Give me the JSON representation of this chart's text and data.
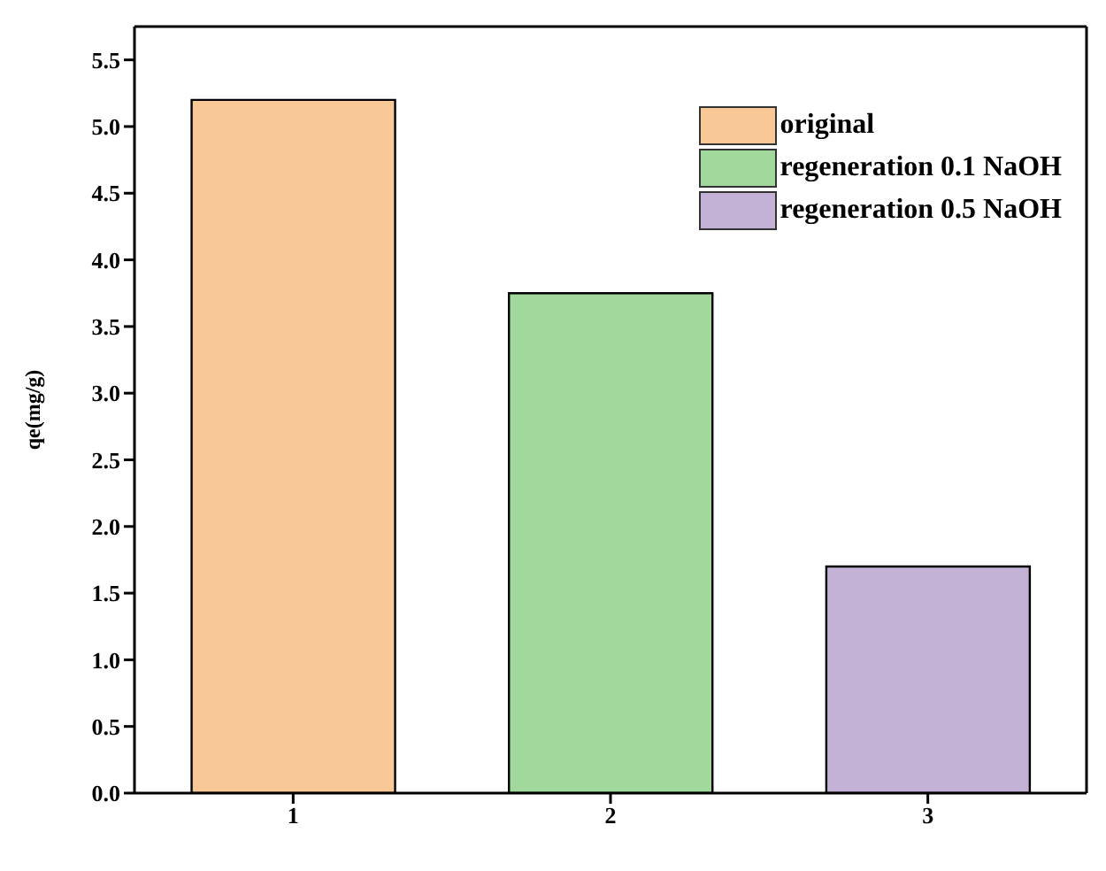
{
  "chart_data": {
    "type": "bar",
    "ylabel": "qe(mg/g)",
    "categories": [
      "1",
      "2",
      "3"
    ],
    "series": [
      {
        "name": "original",
        "color": "#f9c897",
        "values": [
          5.2,
          null,
          null
        ]
      },
      {
        "name": "regeneration 0.1 NaOH",
        "color": "#a0d99b",
        "values": [
          null,
          3.75,
          null
        ]
      },
      {
        "name": "regeneration 0.5 NaOH",
        "color": "#c3b1d6",
        "values": [
          null,
          null,
          1.7
        ]
      }
    ],
    "ylim": [
      0,
      5.75
    ],
    "yticks": [
      {
        "value": 0,
        "label": "0.0"
      },
      {
        "value": 0.5,
        "label": "0.5"
      },
      {
        "value": 1,
        "label": "1.0"
      },
      {
        "value": 1.5,
        "label": "1.5"
      },
      {
        "value": 2,
        "label": "2.0"
      },
      {
        "value": 2.5,
        "label": "2.5"
      },
      {
        "value": 3,
        "label": "3.0"
      },
      {
        "value": 3.5,
        "label": "3.5"
      },
      {
        "value": 4,
        "label": "4.0"
      },
      {
        "value": 4.5,
        "label": "4.5"
      },
      {
        "value": 5,
        "label": "5.0"
      },
      {
        "value": 5.5,
        "label": "5.5"
      }
    ],
    "legend": "top right"
  }
}
